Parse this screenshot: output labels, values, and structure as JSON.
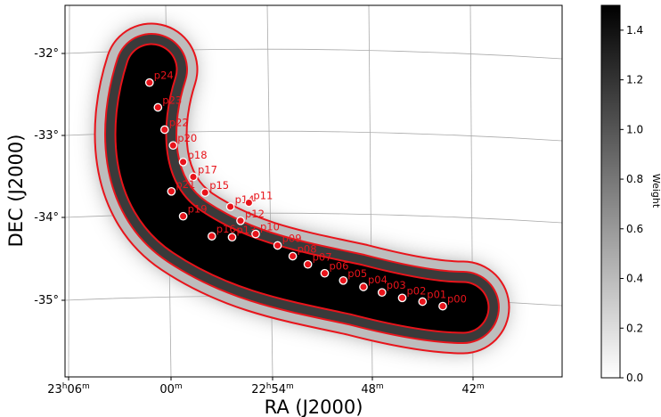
{
  "chart_data": {
    "type": "heatmap",
    "xlabel": "RA (J2000)",
    "ylabel": "DEC (J2000)",
    "x_ticks": [
      {
        "h": "23",
        "m": "06",
        "label_main": "23",
        "label_sup1": "h",
        "label_mid": "06",
        "label_sup2": "m"
      },
      {
        "m": "00",
        "label_main": "00",
        "label_sup": "m"
      },
      {
        "h": "22",
        "m": "54",
        "label_main": "22",
        "label_sup1": "h",
        "label_mid": "54",
        "label_sup2": "m"
      },
      {
        "m": "48",
        "label_main": "48",
        "label_sup": "m"
      },
      {
        "m": "42",
        "label_main": "42",
        "label_sup": "m"
      }
    ],
    "y_ticks": [
      "-32°",
      "-33°",
      "-34°",
      "-35°"
    ],
    "colorbar": {
      "label": "Weight",
      "ticks": [
        "0.0",
        "0.2",
        "0.4",
        "0.6",
        "0.8",
        "1.0",
        "1.2",
        "1.4"
      ],
      "range": [
        0,
        1.5
      ],
      "colormap": "gray_r"
    },
    "contour_color": "#e8141b",
    "contour_levels": 3,
    "pointings": [
      {
        "label": "p24",
        "ra": "23h01.2m",
        "dec": -32.3
      },
      {
        "label": "p23",
        "ra": "23h00.7m",
        "dec": -32.6
      },
      {
        "label": "p22",
        "ra": "23h00.3m",
        "dec": -32.87
      },
      {
        "label": "p20",
        "ra": "22h59.8m",
        "dec": -33.06
      },
      {
        "label": "p18",
        "ra": "22h59.2m",
        "dec": -33.26
      },
      {
        "label": "p17",
        "ra": "22h58.6m",
        "dec": -33.44
      },
      {
        "label": "p21",
        "ra": "22h59.9m",
        "dec": -33.62
      },
      {
        "label": "p15",
        "ra": "22h57.9m",
        "dec": -33.63
      },
      {
        "label": "p14",
        "ra": "22h56.4m",
        "dec": -33.8
      },
      {
        "label": "p11",
        "ra": "22h55.3m",
        "dec": -33.75
      },
      {
        "label": "p19",
        "ra": "22h59.2m",
        "dec": -33.92
      },
      {
        "label": "p12",
        "ra": "22h55.8m",
        "dec": -33.97
      },
      {
        "label": "p16",
        "ra": "22h57.5m",
        "dec": -34.16
      },
      {
        "label": "p13",
        "ra": "22h56.3m",
        "dec": -34.17
      },
      {
        "label": "p10",
        "ra": "22h54.9m",
        "dec": -34.13
      },
      {
        "label": "p09",
        "ra": "22h53.6m",
        "dec": -34.27
      },
      {
        "label": "p08",
        "ra": "22h52.7m",
        "dec": -34.4
      },
      {
        "label": "p07",
        "ra": "22h51.8m",
        "dec": -34.5
      },
      {
        "label": "p06",
        "ra": "22h50.8m",
        "dec": -34.61
      },
      {
        "label": "p05",
        "ra": "22h49.7m",
        "dec": -34.7
      },
      {
        "label": "p04",
        "ra": "22h48.5m",
        "dec": -34.78
      },
      {
        "label": "p03",
        "ra": "22h47.4m",
        "dec": -34.85
      },
      {
        "label": "p02",
        "ra": "22h46.2m",
        "dec": -34.92
      },
      {
        "label": "p01",
        "ra": "22h45.0m",
        "dec": -34.97
      },
      {
        "label": "p00",
        "ra": "22h43.8m",
        "dec": -35.03
      }
    ]
  }
}
